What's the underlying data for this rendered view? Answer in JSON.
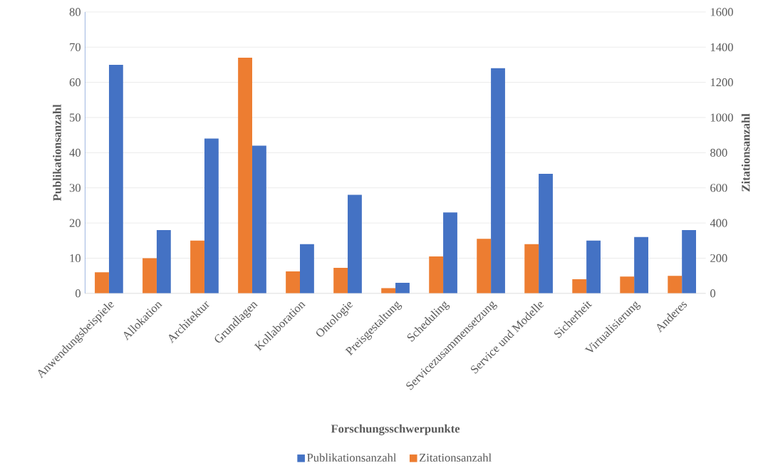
{
  "chart_data": {
    "type": "bar",
    "xlabel": "Forschungsschwerpunkte",
    "ylabel": "Publikationsanzahl",
    "y2label": "Zitationsanzahl",
    "categories": [
      "Anwendungsbeispiele",
      "Allokation",
      "Architektur",
      "Grundlagen",
      "Kollaboration",
      "Ontologie",
      "Preisgestaltung",
      "Scheduling",
      "Servicezusammensetzung",
      "Service und Modelle",
      "Sicherheit",
      "Virtualisierung",
      "Anderes"
    ],
    "series": [
      {
        "name": "Publikationsanzahl",
        "color": "#4472c4",
        "values": [
          65,
          18,
          44,
          42,
          14,
          28,
          3,
          23,
          64,
          34,
          15,
          16,
          18
        ]
      },
      {
        "name": "Zitationsanzahl",
        "color": "#ed7d31",
        "axis": "y2",
        "values": [
          120,
          200,
          300,
          1340,
          125,
          145,
          30,
          210,
          310,
          280,
          80,
          95,
          100
        ]
      }
    ],
    "ylim": [
      0,
      80
    ],
    "yticks": [
      0,
      10,
      20,
      30,
      40,
      50,
      60,
      70,
      80
    ],
    "y2lim": [
      0,
      1600
    ],
    "y2ticks": [
      0,
      200,
      400,
      600,
      800,
      1000,
      1200,
      1400,
      1600
    ],
    "grid": "y",
    "legend": "bottom"
  }
}
